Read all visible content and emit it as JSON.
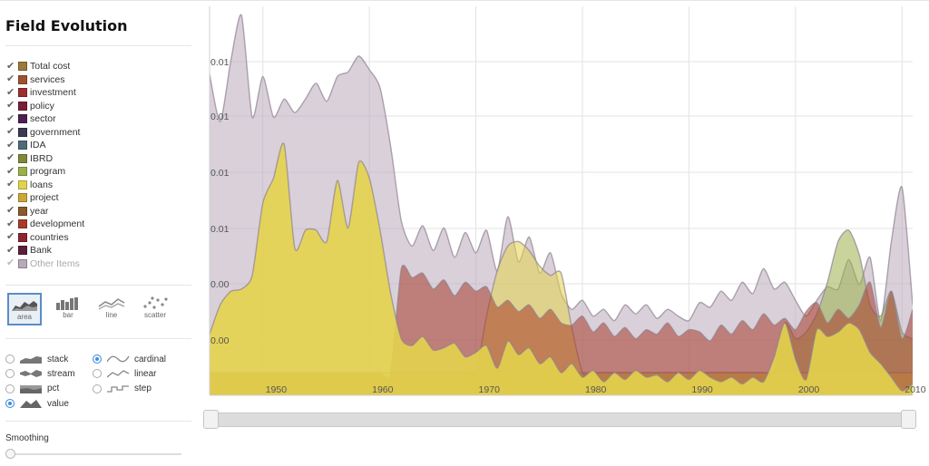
{
  "sidebar": {
    "title": "Field Evolution",
    "legend": [
      {
        "label": "Total cost",
        "color": "#9b7a3a",
        "checked": true
      },
      {
        "label": "services",
        "color": "#a0522d",
        "checked": true
      },
      {
        "label": "investment",
        "color": "#9c2f2f",
        "checked": true
      },
      {
        "label": "policy",
        "color": "#7a1f3a",
        "checked": true
      },
      {
        "label": "sector",
        "color": "#4b2150",
        "checked": true
      },
      {
        "label": "government",
        "color": "#3a3a52",
        "checked": true
      },
      {
        "label": "IDA",
        "color": "#4e6b7a",
        "checked": true
      },
      {
        "label": "IBRD",
        "color": "#7e8a3a",
        "checked": true
      },
      {
        "label": "program",
        "color": "#9bb04a",
        "checked": true
      },
      {
        "label": "loans",
        "color": "#e3d34c",
        "checked": true
      },
      {
        "label": "project",
        "color": "#c9a83a",
        "checked": true
      },
      {
        "label": "year",
        "color": "#8a5a2a",
        "checked": true
      },
      {
        "label": "development",
        "color": "#a83a2a",
        "checked": true
      },
      {
        "label": "countries",
        "color": "#8c2633",
        "checked": true
      },
      {
        "label": "Bank",
        "color": "#5a1f3a",
        "checked": true
      },
      {
        "label": "Other Items",
        "color": "#b9a9bc",
        "checked": true,
        "dim": true
      }
    ],
    "chart_types": [
      {
        "label": "area",
        "active": true
      },
      {
        "label": "bar",
        "active": false
      },
      {
        "label": "line",
        "active": false
      },
      {
        "label": "scatter",
        "active": false
      }
    ],
    "offsets": [
      {
        "label": "stack",
        "selected": false
      },
      {
        "label": "stream",
        "selected": false
      },
      {
        "label": "pct",
        "selected": false
      },
      {
        "label": "value",
        "selected": true
      }
    ],
    "interpolations": [
      {
        "label": "cardinal",
        "selected": true
      },
      {
        "label": "linear",
        "selected": false
      },
      {
        "label": "step",
        "selected": false
      }
    ],
    "smoothing_label": "Smoothing",
    "smoothing_value": 0
  },
  "chart_data": {
    "type": "area",
    "mode": "value",
    "interpolation": "cardinal",
    "x": [
      1945,
      1946,
      1947,
      1948,
      1949,
      1950,
      1951,
      1952,
      1953,
      1954,
      1955,
      1956,
      1957,
      1958,
      1959,
      1960,
      1961,
      1962,
      1963,
      1964,
      1965,
      1966,
      1967,
      1968,
      1969,
      1970,
      1971,
      1972,
      1973,
      1974,
      1975,
      1976,
      1977,
      1978,
      1979,
      1980,
      1981,
      1982,
      1983,
      1984,
      1985,
      1986,
      1987,
      1988,
      1989,
      1990,
      1991,
      1992,
      1993,
      1994,
      1995,
      1996,
      1997,
      1998,
      1999,
      2000,
      2001,
      2002,
      2003,
      2004,
      2005,
      2006,
      2007,
      2008,
      2009,
      2010,
      2011
    ],
    "xlim": [
      1945,
      2011
    ],
    "xticks": [
      "1950",
      "1960",
      "1970",
      "1980",
      "1990",
      "2000",
      "2010"
    ],
    "yticks": [
      "0.00",
      "0.00",
      "0.01",
      "0.01",
      "0.01",
      "0.01"
    ],
    "grid": true,
    "series": [
      {
        "name": "Other Items",
        "color": "#b9a9bc",
        "values": [
          0.0132,
          0.0111,
          0.0138,
          0.0158,
          0.0113,
          0.0131,
          0.0113,
          0.0121,
          0.0115,
          0.0121,
          0.0128,
          0.012,
          0.0131,
          0.0133,
          0.014,
          0.0134,
          0.0126,
          0.01,
          0.0067,
          0.0056,
          0.0065,
          0.0054,
          0.0064,
          0.0051,
          0.0062,
          0.0053,
          0.0063,
          0.0045,
          0.0069,
          0.0049,
          0.006,
          0.0044,
          0.0053,
          0.0035,
          0.0028,
          0.0032,
          0.0025,
          0.0028,
          0.0023,
          0.003,
          0.0026,
          0.003,
          0.0024,
          0.0028,
          0.0025,
          0.0023,
          0.0031,
          0.0029,
          0.0036,
          0.0032,
          0.004,
          0.0035,
          0.0046,
          0.0037,
          0.004,
          0.0032,
          0.0025,
          0.0032,
          0.0038,
          0.0037,
          0.005,
          0.0039,
          0.0051,
          0.0023,
          0.0058,
          0.0082,
          0.003
        ]
      },
      {
        "name": "IBRD",
        "color": "#9bb04a",
        "values": [
          0,
          0,
          0,
          0,
          0,
          0,
          0,
          0,
          0,
          0,
          0,
          0,
          0,
          0,
          0,
          0,
          0,
          0,
          0,
          0,
          0,
          0,
          0,
          0,
          0,
          0,
          0,
          0,
          0,
          0,
          0,
          0,
          0,
          0,
          0,
          0,
          0,
          0,
          0,
          0,
          0,
          0,
          0,
          0,
          0,
          0,
          0,
          0,
          0,
          0,
          0,
          0,
          0,
          0,
          0.0022,
          0.0015,
          0.0018,
          0.0026,
          0.004,
          0.0058,
          0.0063,
          0.0052,
          0.003,
          0.0025,
          0.0036,
          0.0018,
          0.0015
        ]
      },
      {
        "name": "program",
        "color": "#e3d34c",
        "values": [
          0,
          0,
          0,
          0,
          0,
          0,
          0,
          0,
          0,
          0,
          0,
          0,
          0,
          0,
          0,
          0,
          0,
          0,
          0,
          0,
          0,
          0,
          0,
          0,
          0,
          0,
          0.0025,
          0.0045,
          0.0056,
          0.0058,
          0.0054,
          0.0047,
          0.0043,
          0.0044,
          0.002,
          0,
          0,
          0,
          0,
          0,
          0,
          0,
          0,
          0,
          0,
          0,
          0,
          0,
          0,
          0,
          0,
          0,
          0,
          0,
          0,
          0,
          0,
          0,
          0,
          0,
          0,
          0,
          0,
          0,
          0,
          0,
          0
        ]
      },
      {
        "name": "development",
        "color": "#a83a2a",
        "values": [
          0,
          0,
          0,
          0,
          0,
          0,
          0,
          0,
          0,
          0,
          0,
          0,
          0,
          0,
          0,
          0,
          0,
          0,
          0.0046,
          0.0042,
          0.0044,
          0.0037,
          0.0041,
          0.0034,
          0.004,
          0.0036,
          0.0038,
          0.0029,
          0.0032,
          0.0027,
          0.003,
          0.0024,
          0.0028,
          0.0022,
          0.0021,
          0.0025,
          0.0018,
          0.0022,
          0.0016,
          0.002,
          0.0015,
          0.0019,
          0.0017,
          0.0022,
          0.0016,
          0.0019,
          0.0018,
          0.0014,
          0.0021,
          0.0017,
          0.0023,
          0.0019,
          0.0026,
          0.0021,
          0.0024,
          0.0019,
          0.0027,
          0.0031,
          0.0022,
          0.0028,
          0.0024,
          0.003,
          0.004,
          0.002,
          0.0036,
          0.0015,
          0.0028
        ]
      },
      {
        "name": "loans",
        "color": "#e3d34c",
        "values": [
          0.0017,
          0.003,
          0.0036,
          0.0037,
          0.0043,
          0.0075,
          0.0086,
          0.0101,
          0.0055,
          0.0063,
          0.0063,
          0.0058,
          0.0085,
          0.0064,
          0.0093,
          0.0086,
          0.0063,
          0.0035,
          0.0015,
          0.0012,
          0.0016,
          0.001,
          0.0011,
          0.0013,
          0.0007,
          0.0009,
          0.0012,
          0.0002,
          0.0014,
          0.0008,
          0.0011,
          0.0004,
          0.0007,
          0.0,
          0.0004,
          -0.0002,
          0.0001,
          -0.0004,
          0.0,
          -0.0003,
          0.0001,
          -0.0002,
          -0.0001,
          -0.0004,
          0.0,
          -0.0003,
          0.0001,
          -0.0002,
          -0.0004,
          -0.0002,
          -0.0005,
          -0.0002,
          -0.0004,
          0.0007,
          0.0022,
          0.0006,
          -0.0003,
          0.0019,
          0.0016,
          0.0018,
          0.0022,
          0.0019,
          0.0009,
          0.0004,
          -0.0002,
          -0.0008,
          -0.0005
        ]
      }
    ],
    "ylim": [
      -0.001,
      0.0162
    ]
  }
}
